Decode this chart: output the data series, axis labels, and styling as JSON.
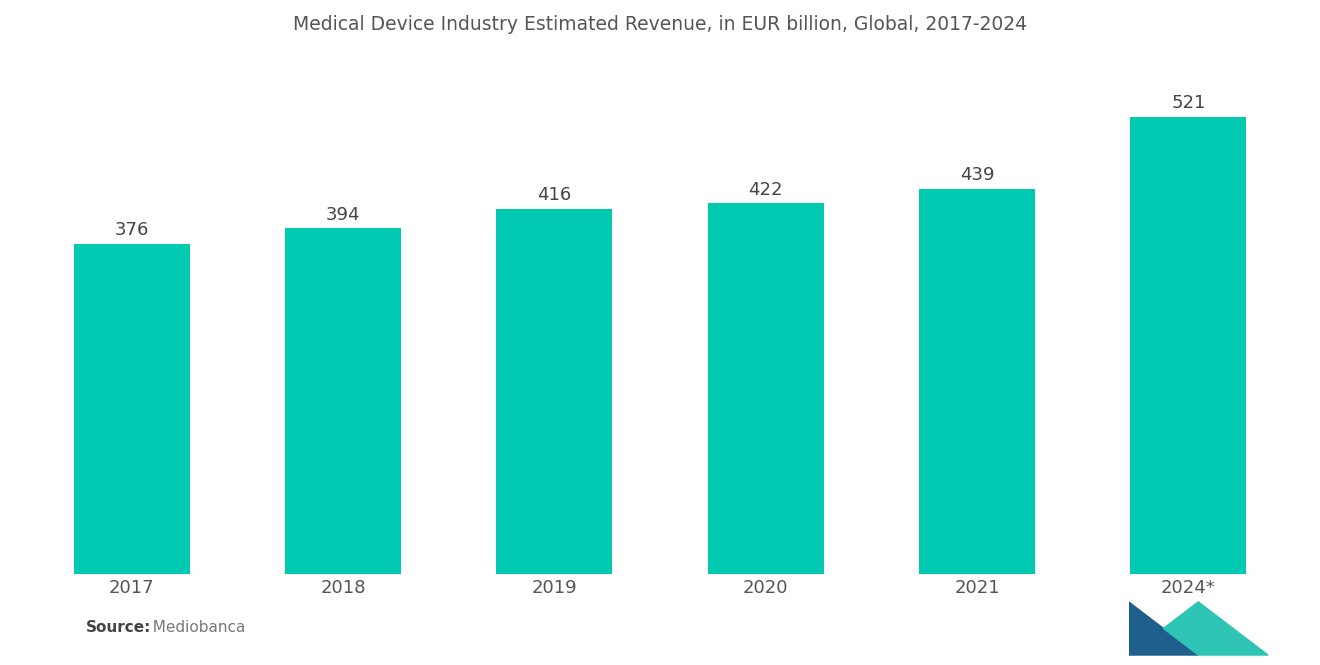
{
  "title": "Medical Device Industry Estimated Revenue, in EUR billion, Global, 2017-2024",
  "categories": [
    "2017",
    "2018",
    "2019",
    "2020",
    "2021",
    "2024*"
  ],
  "values": [
    376,
    394,
    416,
    422,
    439,
    521
  ],
  "bar_color": "#00C9B1",
  "background_color": "#ffffff",
  "title_fontsize": 13.5,
  "label_fontsize": 13,
  "tick_fontsize": 13,
  "source_bold": "Source:",
  "source_normal": "  Mediobanca",
  "ylim": [
    0,
    580
  ],
  "bar_width": 0.55,
  "logo_dark_blue": "#1e5f8e",
  "logo_teal": "#2ec4b6"
}
